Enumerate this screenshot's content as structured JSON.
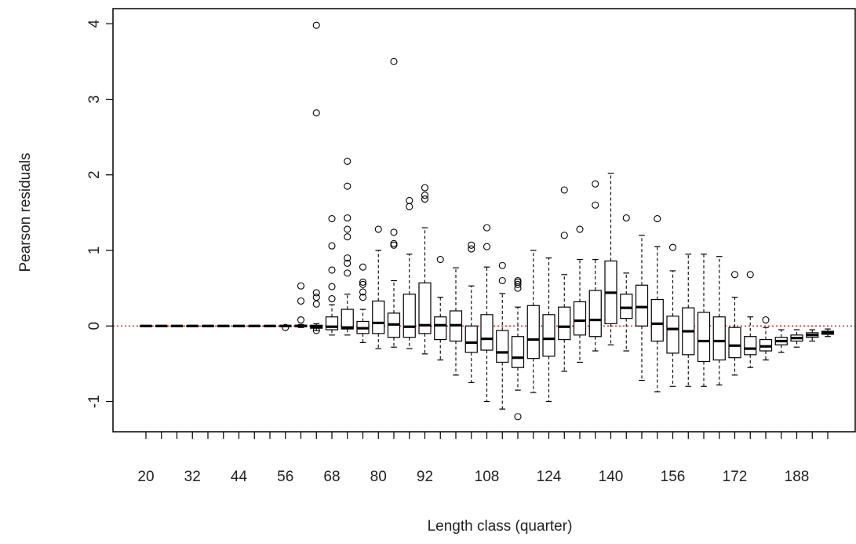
{
  "chart_data": {
    "type": "box",
    "xlabel": "Length class (quarter)",
    "ylabel": "Pearson residuals",
    "ylim": [
      -1.4,
      4.2
    ],
    "yticks": [
      -1,
      0,
      1,
      2,
      3,
      4
    ],
    "x_tick_labels": [
      "20",
      "32",
      "44",
      "56",
      "68",
      "80",
      "92",
      "108",
      "124",
      "140",
      "156",
      "172",
      "188"
    ],
    "x_tick_label_values": [
      20,
      32,
      44,
      56,
      68,
      80,
      92,
      108,
      124,
      140,
      156,
      172,
      188
    ],
    "reference_line": {
      "y": 0,
      "color": "#cc0000",
      "style": "dotted"
    },
    "grid": false,
    "legend": "none",
    "boxes": [
      {
        "x": 20,
        "q1": 0,
        "median": 0,
        "q3": 0,
        "lo": 0,
        "hi": 0,
        "out": []
      },
      {
        "x": 24,
        "q1": 0,
        "median": 0,
        "q3": 0,
        "lo": 0,
        "hi": 0,
        "out": []
      },
      {
        "x": 28,
        "q1": 0,
        "median": 0,
        "q3": 0,
        "lo": 0,
        "hi": 0,
        "out": []
      },
      {
        "x": 32,
        "q1": 0,
        "median": 0,
        "q3": 0,
        "lo": 0,
        "hi": 0,
        "out": []
      },
      {
        "x": 36,
        "q1": 0,
        "median": 0,
        "q3": 0,
        "lo": 0,
        "hi": 0,
        "out": []
      },
      {
        "x": 40,
        "q1": 0,
        "median": 0,
        "q3": 0,
        "lo": 0,
        "hi": 0,
        "out": []
      },
      {
        "x": 44,
        "q1": 0,
        "median": 0,
        "q3": 0,
        "lo": 0,
        "hi": 0,
        "out": []
      },
      {
        "x": 48,
        "q1": 0,
        "median": 0,
        "q3": 0,
        "lo": 0,
        "hi": 0,
        "out": []
      },
      {
        "x": 52,
        "q1": 0,
        "median": 0,
        "q3": 0,
        "lo": 0,
        "hi": 0,
        "out": []
      },
      {
        "x": 56,
        "q1": 0,
        "median": 0,
        "q3": 0,
        "lo": 0,
        "hi": 0,
        "out": [
          -0.02
        ]
      },
      {
        "x": 60,
        "q1": -0.01,
        "median": 0,
        "q3": 0.01,
        "lo": -0.02,
        "hi": 0.02,
        "out": [
          0.08,
          0.33,
          0.53
        ]
      },
      {
        "x": 64,
        "q1": -0.03,
        "median": -0.01,
        "q3": 0.01,
        "lo": -0.06,
        "hi": 0.03,
        "out": [
          -0.06,
          0.29,
          0.38,
          0.44,
          2.82,
          3.98
        ]
      },
      {
        "x": 68,
        "q1": -0.05,
        "median": -0.01,
        "q3": 0.12,
        "lo": -0.12,
        "hi": 0.28,
        "out": [
          0.36,
          0.52,
          0.74,
          1.06,
          1.42
        ]
      },
      {
        "x": 72,
        "q1": -0.04,
        "median": -0.02,
        "q3": 0.22,
        "lo": -0.12,
        "hi": 0.42,
        "out": [
          0.7,
          0.83,
          0.9,
          1.18,
          1.28,
          1.43,
          1.85,
          2.18
        ]
      },
      {
        "x": 76,
        "q1": -0.1,
        "median": -0.03,
        "q3": 0.06,
        "lo": -0.22,
        "hi": 0.22,
        "out": [
          0.38,
          0.45,
          0.55,
          0.58,
          0.78
        ]
      },
      {
        "x": 80,
        "q1": -0.1,
        "median": 0.04,
        "q3": 0.33,
        "lo": -0.3,
        "hi": 1.0,
        "out": [
          1.28
        ]
      },
      {
        "x": 84,
        "q1": -0.15,
        "median": 0.02,
        "q3": 0.17,
        "lo": -0.28,
        "hi": 0.6,
        "out": [
          1.07,
          1.09,
          1.24,
          3.5
        ]
      },
      {
        "x": 88,
        "q1": -0.15,
        "median": -0.01,
        "q3": 0.42,
        "lo": -0.3,
        "hi": 0.95,
        "out": [
          1.58,
          1.66
        ]
      },
      {
        "x": 92,
        "q1": -0.1,
        "median": 0.01,
        "q3": 0.57,
        "lo": -0.37,
        "hi": 1.3,
        "out": [
          1.68,
          1.73,
          1.83
        ]
      },
      {
        "x": 96,
        "q1": -0.18,
        "median": 0.01,
        "q3": 0.12,
        "lo": -0.45,
        "hi": 0.38,
        "out": [
          0.88
        ]
      },
      {
        "x": 100,
        "q1": -0.2,
        "median": 0.01,
        "q3": 0.2,
        "lo": -0.65,
        "hi": 0.77,
        "out": []
      },
      {
        "x": 104,
        "q1": -0.35,
        "median": -0.22,
        "q3": 0.0,
        "lo": -0.75,
        "hi": 0.53,
        "out": [
          1.02,
          1.07
        ]
      },
      {
        "x": 108,
        "q1": -0.32,
        "median": -0.17,
        "q3": 0.15,
        "lo": -1.0,
        "hi": 0.78,
        "out": [
          1.05,
          1.3
        ]
      },
      {
        "x": 112,
        "q1": -0.48,
        "median": -0.35,
        "q3": -0.06,
        "lo": -1.1,
        "hi": 0.43,
        "out": [
          0.6,
          0.8
        ]
      },
      {
        "x": 116,
        "q1": -0.55,
        "median": -0.42,
        "q3": -0.14,
        "lo": -0.85,
        "hi": 0.25,
        "out": [
          0.5,
          0.55,
          0.58,
          0.6,
          -1.2
        ]
      },
      {
        "x": 120,
        "q1": -0.43,
        "median": -0.18,
        "q3": 0.27,
        "lo": -0.88,
        "hi": 1.0,
        "out": []
      },
      {
        "x": 124,
        "q1": -0.4,
        "median": -0.17,
        "q3": 0.15,
        "lo": -1.0,
        "hi": 0.9,
        "out": []
      },
      {
        "x": 128,
        "q1": -0.18,
        "median": -0.01,
        "q3": 0.25,
        "lo": -0.6,
        "hi": 0.68,
        "out": [
          1.2,
          1.8
        ]
      },
      {
        "x": 132,
        "q1": -0.12,
        "median": 0.07,
        "q3": 0.32,
        "lo": -0.48,
        "hi": 0.88,
        "out": [
          1.28
        ]
      },
      {
        "x": 136,
        "q1": -0.14,
        "median": 0.08,
        "q3": 0.47,
        "lo": -0.33,
        "hi": 0.88,
        "out": [
          1.6,
          1.88
        ]
      },
      {
        "x": 140,
        "q1": 0.03,
        "median": 0.44,
        "q3": 0.86,
        "lo": -0.25,
        "hi": 2.02,
        "out": []
      },
      {
        "x": 144,
        "q1": 0.1,
        "median": 0.24,
        "q3": 0.42,
        "lo": -0.33,
        "hi": 0.7,
        "out": [
          1.43
        ]
      },
      {
        "x": 148,
        "q1": 0.0,
        "median": 0.25,
        "q3": 0.54,
        "lo": -0.72,
        "hi": 1.2,
        "out": []
      },
      {
        "x": 152,
        "q1": -0.2,
        "median": 0.03,
        "q3": 0.35,
        "lo": -0.87,
        "hi": 1.05,
        "out": [
          1.42
        ]
      },
      {
        "x": 156,
        "q1": -0.36,
        "median": -0.04,
        "q3": 0.13,
        "lo": -0.8,
        "hi": 0.73,
        "out": [
          1.04
        ]
      },
      {
        "x": 160,
        "q1": -0.38,
        "median": -0.07,
        "q3": 0.24,
        "lo": -0.8,
        "hi": 0.95,
        "out": []
      },
      {
        "x": 164,
        "q1": -0.47,
        "median": -0.2,
        "q3": 0.18,
        "lo": -0.8,
        "hi": 0.95,
        "out": []
      },
      {
        "x": 168,
        "q1": -0.45,
        "median": -0.2,
        "q3": 0.12,
        "lo": -0.78,
        "hi": 0.92,
        "out": []
      },
      {
        "x": 172,
        "q1": -0.42,
        "median": -0.26,
        "q3": -0.02,
        "lo": -0.65,
        "hi": 0.38,
        "out": [
          0.68
        ]
      },
      {
        "x": 176,
        "q1": -0.38,
        "median": -0.3,
        "q3": -0.14,
        "lo": -0.55,
        "hi": 0.12,
        "out": [
          0.68
        ]
      },
      {
        "x": 180,
        "q1": -0.33,
        "median": -0.27,
        "q3": -0.18,
        "lo": -0.45,
        "hi": -0.02,
        "out": [
          0.08
        ]
      },
      {
        "x": 184,
        "q1": -0.25,
        "median": -0.2,
        "q3": -0.15,
        "lo": -0.35,
        "hi": -0.05,
        "out": []
      },
      {
        "x": 188,
        "q1": -0.2,
        "median": -0.16,
        "q3": -0.12,
        "lo": -0.28,
        "hi": -0.05,
        "out": []
      },
      {
        "x": 192,
        "q1": -0.15,
        "median": -0.12,
        "q3": -0.09,
        "lo": -0.2,
        "hi": -0.05,
        "out": []
      },
      {
        "x": 196,
        "q1": -0.11,
        "median": -0.09,
        "q3": -0.07,
        "lo": -0.14,
        "hi": -0.04,
        "out": []
      }
    ]
  }
}
